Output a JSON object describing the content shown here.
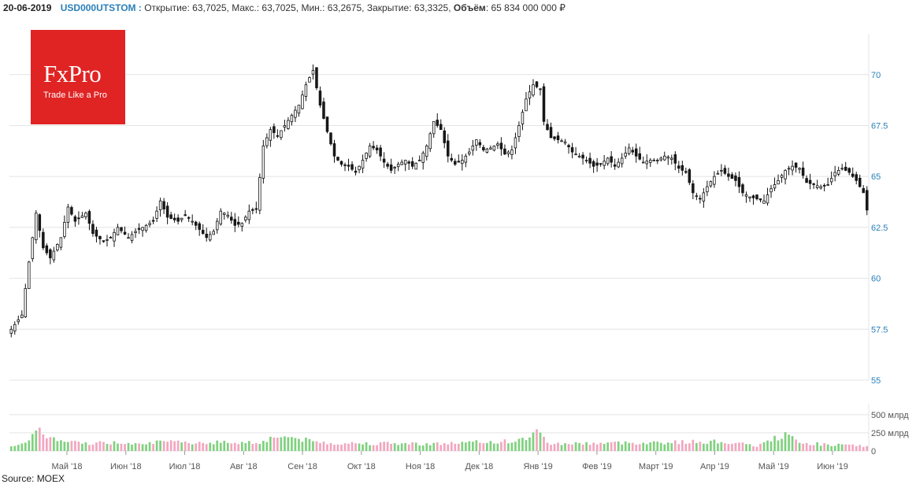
{
  "header": {
    "date": "20-06-2019",
    "ticker": "USD000UTSTOM :",
    "open_label": "Открытие: 63,7025,",
    "high_label": "Макс.: 63,7025,",
    "low_label": "Мин.: 63,2675,",
    "close_label": "Закрытие: 63,3325,",
    "volume_label": "Объём",
    "volume_value": ": 65 834 000 000 ₽"
  },
  "logo": {
    "brand": "FxPro",
    "tagline": "Trade Like a Pro"
  },
  "source": "Source: MOEX",
  "colors": {
    "up_candle": "#ffffff",
    "down_candle": "#1a1a1a",
    "volume_up": "#7fd17f",
    "volume_down": "#f2a6bf",
    "grid": "#e4e4e4",
    "logo_bg": "#e02424",
    "price_tick": "#2a7fb8"
  },
  "chart_data": {
    "type": "candlestick",
    "instrument": "USD000UTSTOM",
    "price_axis": {
      "ticks": [
        55,
        57.5,
        60,
        62.5,
        65,
        67.5,
        70
      ],
      "tick_labels": [
        "55",
        "57.5",
        "60",
        "62.5",
        "65",
        "67.5",
        "70"
      ],
      "range": [
        55,
        72
      ]
    },
    "volume_axis": {
      "ticks": [
        0,
        250,
        500
      ],
      "tick_labels": [
        "0",
        "250 млрд",
        "500 млрд"
      ],
      "unit": "млрд",
      "range": [
        0,
        650
      ]
    },
    "x_ticks": [
      "Май '18",
      "Июн '18",
      "Июл '18",
      "Авг '18",
      "Сен '18",
      "Окт '18",
      "Ноя '18",
      "Дек '18",
      "Янв '19",
      "Фев '19",
      "Март '19",
      "Апр '19",
      "Май '19",
      "Июн '19"
    ],
    "anchor_closes": [
      [
        0,
        57.5
      ],
      [
        3,
        58.2
      ],
      [
        5,
        60.8
      ],
      [
        7,
        63.2
      ],
      [
        9,
        61.5
      ],
      [
        11,
        61.0
      ],
      [
        14,
        62.0
      ],
      [
        16,
        63.5
      ],
      [
        18,
        62.8
      ],
      [
        21,
        63.2
      ],
      [
        23,
        62.2
      ],
      [
        26,
        61.8
      ],
      [
        28,
        62.0
      ],
      [
        30,
        62.5
      ],
      [
        33,
        62.0
      ],
      [
        35,
        62.3
      ],
      [
        37,
        62.5
      ],
      [
        40,
        62.8
      ],
      [
        42,
        63.8
      ],
      [
        44,
        63.0
      ],
      [
        47,
        62.8
      ],
      [
        49,
        63.1
      ],
      [
        51,
        62.8
      ],
      [
        53,
        62.4
      ],
      [
        55,
        62.0
      ],
      [
        57,
        62.3
      ],
      [
        59,
        63.3
      ],
      [
        61,
        63.1
      ],
      [
        63,
        62.6
      ],
      [
        65,
        62.7
      ],
      [
        67,
        63.3
      ],
      [
        69,
        63.4
      ],
      [
        71,
        66.5
      ],
      [
        73,
        67.3
      ],
      [
        75,
        67.0
      ],
      [
        77,
        67.5
      ],
      [
        79,
        68.0
      ],
      [
        81,
        68.5
      ],
      [
        83,
        69.5
      ],
      [
        85,
        70.2
      ],
      [
        87,
        68.5
      ],
      [
        89,
        67.2
      ],
      [
        91,
        66.0
      ],
      [
        93,
        65.6
      ],
      [
        95,
        65.5
      ],
      [
        97,
        65.2
      ],
      [
        99,
        65.8
      ],
      [
        101,
        66.5
      ],
      [
        103,
        66.3
      ],
      [
        105,
        65.7
      ],
      [
        107,
        65.3
      ],
      [
        109,
        65.6
      ],
      [
        111,
        65.8
      ],
      [
        113,
        65.5
      ],
      [
        115,
        65.8
      ],
      [
        117,
        66.5
      ],
      [
        119,
        67.7
      ],
      [
        121,
        67.3
      ],
      [
        123,
        66.0
      ],
      [
        125,
        65.6
      ],
      [
        127,
        65.8
      ],
      [
        129,
        66.2
      ],
      [
        131,
        66.8
      ],
      [
        133,
        66.3
      ],
      [
        135,
        66.4
      ],
      [
        137,
        66.6
      ],
      [
        139,
        66.1
      ],
      [
        141,
        66.3
      ],
      [
        143,
        67.5
      ],
      [
        145,
        68.8
      ],
      [
        147,
        69.5
      ],
      [
        149,
        69.3
      ],
      [
        150,
        67.7
      ],
      [
        152,
        66.9
      ],
      [
        154,
        66.8
      ],
      [
        156,
        66.7
      ],
      [
        158,
        66.2
      ],
      [
        160,
        66.0
      ],
      [
        162,
        65.8
      ],
      [
        164,
        65.5
      ],
      [
        166,
        65.6
      ],
      [
        168,
        65.9
      ],
      [
        170,
        65.5
      ],
      [
        172,
        65.9
      ],
      [
        174,
        66.4
      ],
      [
        176,
        66.0
      ],
      [
        178,
        65.7
      ],
      [
        180,
        65.8
      ],
      [
        182,
        65.8
      ],
      [
        184,
        66.0
      ],
      [
        186,
        65.9
      ],
      [
        188,
        65.4
      ],
      [
        190,
        65.2
      ],
      [
        192,
        64.2
      ],
      [
        194,
        63.9
      ],
      [
        196,
        64.5
      ],
      [
        198,
        65.0
      ],
      [
        200,
        65.3
      ],
      [
        202,
        65.0
      ],
      [
        204,
        64.8
      ],
      [
        206,
        64.2
      ],
      [
        208,
        64.0
      ],
      [
        210,
        63.9
      ],
      [
        212,
        63.8
      ],
      [
        214,
        64.4
      ],
      [
        216,
        64.8
      ],
      [
        218,
        65.3
      ],
      [
        220,
        65.5
      ],
      [
        222,
        65.4
      ],
      [
        224,
        64.7
      ],
      [
        226,
        64.6
      ],
      [
        228,
        64.5
      ],
      [
        230,
        64.6
      ],
      [
        232,
        65.2
      ],
      [
        234,
        65.4
      ],
      [
        236,
        65.2
      ],
      [
        238,
        64.8
      ],
      [
        240,
        64.2
      ],
      [
        241,
        63.35
      ]
    ],
    "volume_profile_billions": [
      [
        0,
        80
      ],
      [
        5,
        120
      ],
      [
        8,
        330
      ],
      [
        10,
        220
      ],
      [
        13,
        140
      ],
      [
        20,
        110
      ],
      [
        40,
        120
      ],
      [
        70,
        120
      ],
      [
        75,
        210
      ],
      [
        80,
        180
      ],
      [
        85,
        130
      ],
      [
        90,
        110
      ],
      [
        120,
        100
      ],
      [
        143,
        140
      ],
      [
        148,
        260
      ],
      [
        152,
        100
      ],
      [
        200,
        130
      ],
      [
        210,
        70
      ],
      [
        218,
        230
      ],
      [
        222,
        110
      ],
      [
        241,
        65
      ]
    ]
  }
}
